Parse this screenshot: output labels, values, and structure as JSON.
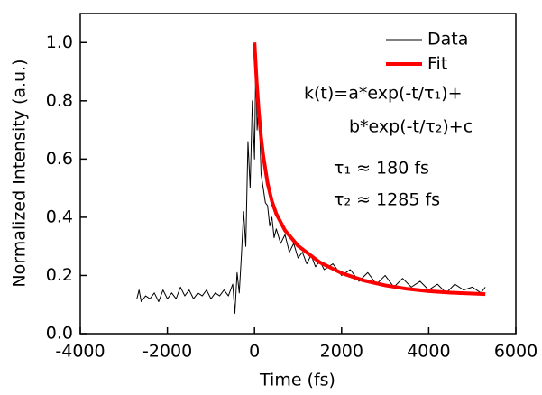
{
  "chart_data": {
    "type": "line",
    "xlabel": "Time (fs)",
    "ylabel": "Normalized Intensity (a.u.)",
    "xlim": [
      -4000,
      6000
    ],
    "xticks": [
      -4000,
      -2000,
      0,
      2000,
      4000,
      6000
    ],
    "ylim": [
      0,
      1.1
    ],
    "yticks": [
      {
        "value": 0,
        "label": "0.0"
      },
      0.2,
      0.4,
      0.6,
      0.8,
      {
        "value": 1,
        "label": "1.0"
      }
    ],
    "legend": "upper right",
    "annotations": [
      "k(t)=a*exp(-t/τ₁)+",
      "b*exp(-t/τ₂)+c",
      "τ₁ ≈ 180 fs",
      "τ₂ ≈ 1285 fs"
    ],
    "series": [
      {
        "name": "Data",
        "color": "#000000",
        "x": [
          -2700,
          -2650,
          -2600,
          -2500,
          -2400,
          -2300,
          -2200,
          -2100,
          -2000,
          -1900,
          -1800,
          -1700,
          -1600,
          -1500,
          -1400,
          -1300,
          -1200,
          -1100,
          -1000,
          -900,
          -800,
          -700,
          -600,
          -500,
          -450,
          -400,
          -350,
          -300,
          -250,
          -200,
          -150,
          -100,
          -50,
          0,
          30,
          60,
          100,
          150,
          200,
          250,
          300,
          350,
          400,
          450,
          500,
          600,
          700,
          800,
          900,
          1000,
          1100,
          1200,
          1300,
          1400,
          1500,
          1600,
          1800,
          2000,
          2200,
          2400,
          2600,
          2800,
          3000,
          3200,
          3400,
          3600,
          3800,
          4000,
          4200,
          4400,
          4600,
          4800,
          5000,
          5200,
          5300
        ],
        "values": [
          0.12,
          0.15,
          0.11,
          0.13,
          0.12,
          0.14,
          0.11,
          0.15,
          0.12,
          0.14,
          0.12,
          0.16,
          0.13,
          0.15,
          0.12,
          0.14,
          0.13,
          0.15,
          0.12,
          0.14,
          0.13,
          0.15,
          0.13,
          0.17,
          0.07,
          0.21,
          0.14,
          0.27,
          0.42,
          0.3,
          0.66,
          0.5,
          0.8,
          0.6,
          0.93,
          0.7,
          0.8,
          0.55,
          0.5,
          0.45,
          0.44,
          0.37,
          0.4,
          0.33,
          0.36,
          0.31,
          0.34,
          0.28,
          0.31,
          0.26,
          0.28,
          0.24,
          0.27,
          0.23,
          0.25,
          0.22,
          0.24,
          0.2,
          0.22,
          0.18,
          0.21,
          0.17,
          0.2,
          0.16,
          0.19,
          0.16,
          0.18,
          0.15,
          0.17,
          0.14,
          0.17,
          0.15,
          0.16,
          0.14,
          0.16
        ]
      },
      {
        "name": "Fit",
        "color": "#ff0000",
        "x": [
          0,
          50,
          100,
          150,
          200,
          300,
          400,
          500,
          700,
          1000,
          1500,
          2000,
          2500,
          3000,
          3500,
          4000,
          4500,
          5000,
          5300
        ],
        "values": [
          1.0,
          0.865,
          0.759,
          0.676,
          0.612,
          0.517,
          0.455,
          0.412,
          0.355,
          0.302,
          0.245,
          0.208,
          0.183,
          0.166,
          0.154,
          0.146,
          0.141,
          0.138,
          0.136
        ]
      }
    ]
  }
}
